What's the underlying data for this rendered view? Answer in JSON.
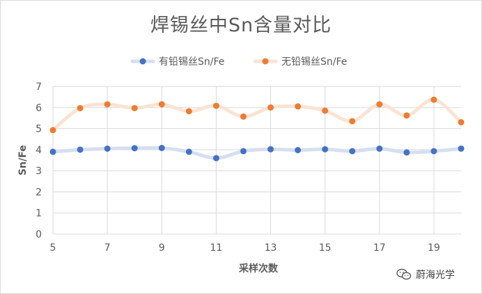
{
  "chart_data": {
    "type": "line",
    "title": "焊锡丝中Sn含量对比",
    "xlabel": "采样次数",
    "ylabel": "Sn/Fe",
    "xlim": [
      5,
      20
    ],
    "ylim": [
      0,
      7
    ],
    "xticks": [
      5,
      7,
      9,
      11,
      13,
      15,
      17,
      19
    ],
    "yticks": [
      0,
      1,
      2,
      3,
      4,
      5,
      6,
      7
    ],
    "grid": true,
    "legend_position": "top",
    "x": [
      5,
      6,
      7,
      8,
      9,
      10,
      11,
      12,
      13,
      14,
      15,
      16,
      17,
      18,
      19,
      20
    ],
    "series": [
      {
        "name": "有铅锡丝Sn/Fe",
        "color": "#4472c4",
        "line_color": "#d6dff0",
        "values": [
          3.9,
          4.0,
          4.05,
          4.07,
          4.08,
          3.9,
          3.6,
          3.93,
          4.02,
          3.98,
          4.02,
          3.93,
          4.05,
          3.87,
          3.93,
          4.05
        ]
      },
      {
        "name": "无铅锡丝Sn/Fe",
        "color": "#ed7d31",
        "line_color": "#fbe3d3",
        "values": [
          4.93,
          5.97,
          6.15,
          5.97,
          6.15,
          5.82,
          6.08,
          5.57,
          6.0,
          6.05,
          5.85,
          5.35,
          6.15,
          5.62,
          6.37,
          5.3
        ]
      }
    ]
  },
  "watermark": {
    "text": "蔚海光学",
    "icon": "wechat-icon"
  }
}
